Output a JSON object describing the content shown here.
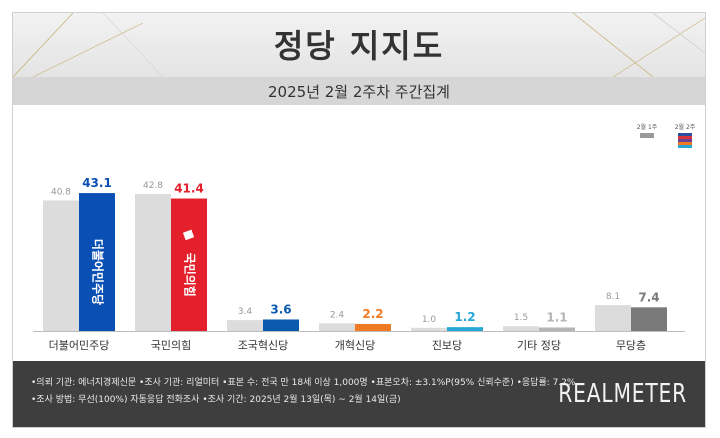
{
  "title": "정당 지지도",
  "subtitle": "2025년 2월 2주차 주간집계",
  "legend": {
    "prev": "2월 1주",
    "curr": "2월 2주"
  },
  "chart_data": {
    "type": "bar",
    "categories": [
      "더불어민주당",
      "국민의힘",
      "조국혁신당",
      "개혁신당",
      "진보당",
      "기타 정당",
      "무당층"
    ],
    "series": [
      {
        "name": "2월 1주",
        "values": [
          40.8,
          42.8,
          3.4,
          2.4,
          1.0,
          1.5,
          8.1
        ]
      },
      {
        "name": "2월 2주",
        "values": [
          43.1,
          41.4,
          3.6,
          2.2,
          1.2,
          1.1,
          7.4
        ]
      }
    ],
    "colors": [
      "#0a4fb4",
      "#e3202b",
      "#0a5bb0",
      "#f07a24",
      "#26a7d6",
      "#b5b5b5",
      "#7a7a7a"
    ],
    "prev_color": "#dcdcdc",
    "prev_label_color": "#999999",
    "ylim": [
      0,
      50
    ],
    "bar_labels": [
      "더불어민주당",
      "국민의힘"
    ]
  },
  "footer": {
    "line1": "•의뢰 기관: 에너지경제신문  •조사 기관: 리얼미터 •표본 수: 전국 만 18세 이상 1,000명 •표본오차: ±3.1%P(95% 신뢰수준) •응답률: 7.2%",
    "line2": "•조사 방법: 무선(100%) 자동응답 전화조사 •조사 기간: 2025년 2월 13일(목) ~ 2월 14일(금)",
    "brand": "REALMETER"
  }
}
